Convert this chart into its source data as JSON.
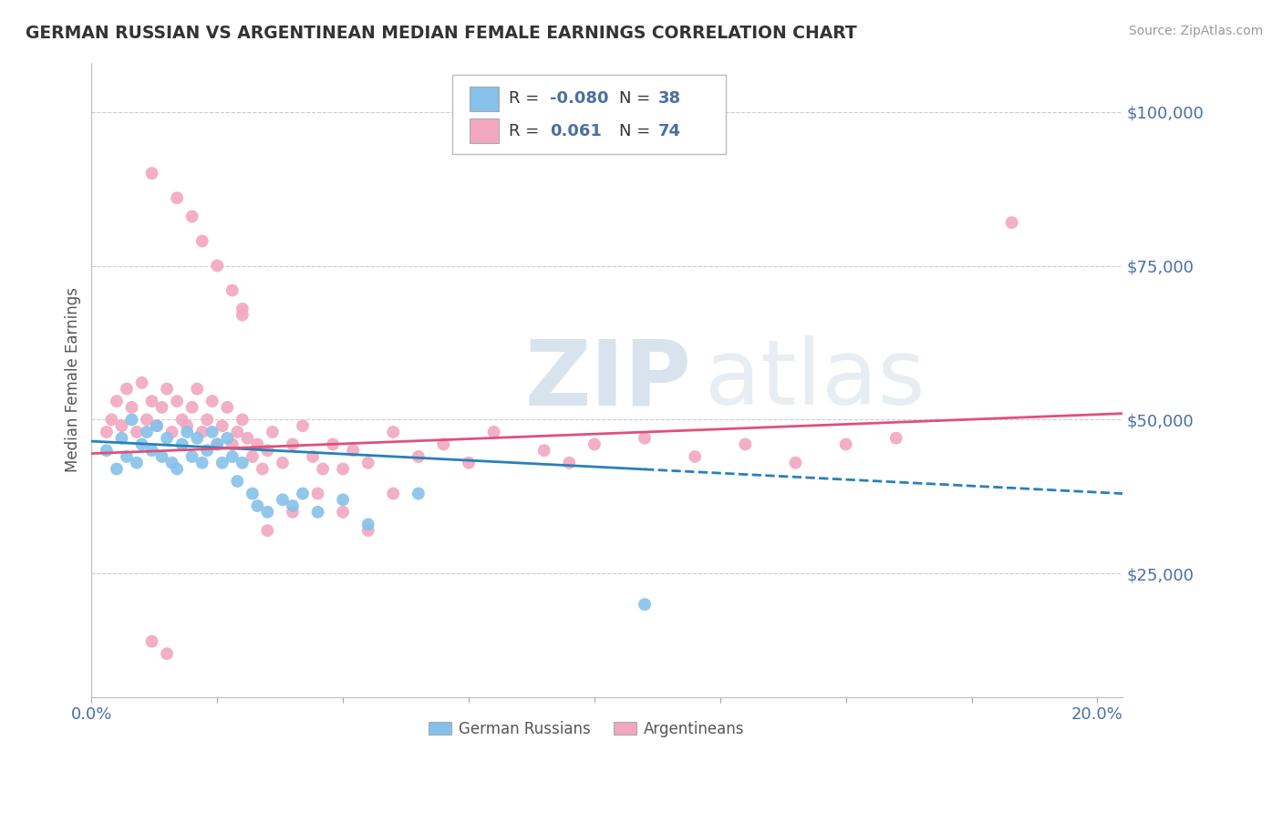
{
  "title": "GERMAN RUSSIAN VS ARGENTINEAN MEDIAN FEMALE EARNINGS CORRELATION CHART",
  "source": "Source: ZipAtlas.com",
  "ylabel": "Median Female Earnings",
  "xlim": [
    0.0,
    0.205
  ],
  "ylim": [
    5000,
    108000
  ],
  "yticks": [
    25000,
    50000,
    75000,
    100000
  ],
  "ytick_labels": [
    "$25,000",
    "$50,000",
    "$75,000",
    "$100,000"
  ],
  "xticks": [
    0.0,
    0.025,
    0.05,
    0.075,
    0.1,
    0.125,
    0.15,
    0.175,
    0.2
  ],
  "xtick_labels": [
    "0.0%",
    "",
    "",
    "",
    "",
    "",
    "",
    "",
    "20.0%"
  ],
  "blue_color": "#85c1e9",
  "pink_color": "#f1a7c0",
  "blue_line_color": "#2980b9",
  "pink_line_color": "#e0507a",
  "tick_color": "#4a6fa5",
  "watermark_zip": "ZIP",
  "watermark_atlas": "atlas",
  "bg_color": "#ffffff",
  "grid_color": "#cccccc",
  "figsize": [
    14.06,
    8.92
  ],
  "dpi": 100,
  "blue_scatter_x": [
    0.003,
    0.005,
    0.006,
    0.007,
    0.008,
    0.009,
    0.01,
    0.011,
    0.012,
    0.013,
    0.014,
    0.015,
    0.016,
    0.017,
    0.018,
    0.019,
    0.02,
    0.021,
    0.022,
    0.023,
    0.024,
    0.025,
    0.026,
    0.027,
    0.028,
    0.029,
    0.03,
    0.032,
    0.033,
    0.035,
    0.038,
    0.04,
    0.042,
    0.045,
    0.05,
    0.055,
    0.065,
    0.11
  ],
  "blue_scatter_y": [
    45000,
    42000,
    47000,
    44000,
    50000,
    43000,
    46000,
    48000,
    45000,
    49000,
    44000,
    47000,
    43000,
    42000,
    46000,
    48000,
    44000,
    47000,
    43000,
    45000,
    48000,
    46000,
    43000,
    47000,
    44000,
    40000,
    43000,
    38000,
    36000,
    35000,
    37000,
    36000,
    38000,
    35000,
    37000,
    33000,
    38000,
    20000
  ],
  "pink_scatter_x": [
    0.003,
    0.004,
    0.005,
    0.006,
    0.007,
    0.008,
    0.009,
    0.01,
    0.011,
    0.012,
    0.013,
    0.014,
    0.015,
    0.016,
    0.017,
    0.018,
    0.019,
    0.02,
    0.021,
    0.022,
    0.023,
    0.024,
    0.025,
    0.026,
    0.027,
    0.028,
    0.029,
    0.03,
    0.031,
    0.032,
    0.033,
    0.034,
    0.035,
    0.036,
    0.038,
    0.04,
    0.042,
    0.044,
    0.046,
    0.048,
    0.05,
    0.052,
    0.055,
    0.06,
    0.065,
    0.07,
    0.075,
    0.08,
    0.09,
    0.095,
    0.1,
    0.11,
    0.12,
    0.13,
    0.14,
    0.15,
    0.16,
    0.012,
    0.017,
    0.02,
    0.022,
    0.025,
    0.028,
    0.03,
    0.035,
    0.04,
    0.045,
    0.05,
    0.055,
    0.06,
    0.012,
    0.015,
    0.183,
    0.03
  ],
  "pink_scatter_y": [
    48000,
    50000,
    53000,
    49000,
    55000,
    52000,
    48000,
    56000,
    50000,
    53000,
    49000,
    52000,
    55000,
    48000,
    53000,
    50000,
    49000,
    52000,
    55000,
    48000,
    50000,
    53000,
    46000,
    49000,
    52000,
    46000,
    48000,
    50000,
    47000,
    44000,
    46000,
    42000,
    45000,
    48000,
    43000,
    46000,
    49000,
    44000,
    42000,
    46000,
    42000,
    45000,
    43000,
    48000,
    44000,
    46000,
    43000,
    48000,
    45000,
    43000,
    46000,
    47000,
    44000,
    46000,
    43000,
    46000,
    47000,
    90000,
    86000,
    83000,
    79000,
    75000,
    71000,
    68000,
    32000,
    35000,
    38000,
    35000,
    32000,
    38000,
    14000,
    12000,
    82000,
    67000
  ],
  "blue_trend_x0": 0.0,
  "blue_trend_x_solid_end": 0.11,
  "blue_trend_x1": 0.205,
  "blue_trend_y0": 46500,
  "blue_trend_y1": 38000,
  "pink_trend_x0": 0.0,
  "pink_trend_x1": 0.205,
  "pink_trend_y0": 44500,
  "pink_trend_y1": 51000
}
